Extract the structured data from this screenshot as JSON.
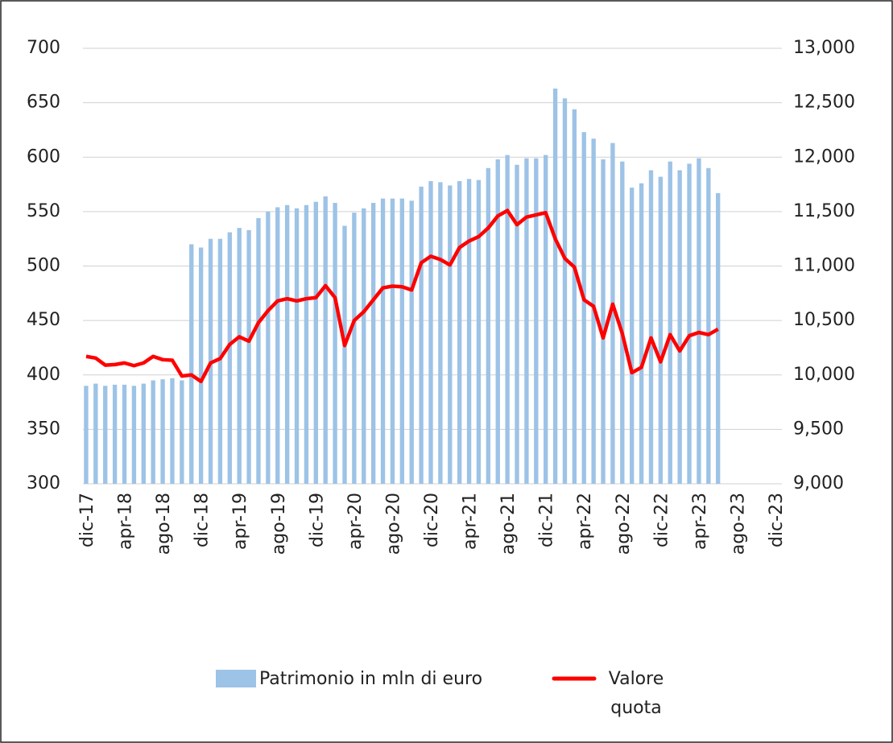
{
  "chart_data": {
    "type": "bar-line",
    "categories": [
      "dic-17",
      null,
      null,
      null,
      "apr-18",
      null,
      null,
      null,
      "ago-18",
      null,
      null,
      null,
      "dic-18",
      null,
      null,
      null,
      "apr-19",
      null,
      null,
      null,
      "ago-19",
      null,
      null,
      null,
      "dic-19",
      null,
      null,
      null,
      "apr-20",
      null,
      null,
      null,
      "ago-20",
      null,
      null,
      null,
      "dic-20",
      null,
      null,
      null,
      "apr-21",
      null,
      null,
      null,
      "ago-21",
      null,
      null,
      null,
      "dic-21",
      null,
      null,
      null,
      "apr-22",
      null,
      null,
      null,
      "ago-22",
      null,
      null,
      null,
      "dic-22",
      null,
      null,
      null,
      "apr-23",
      null,
      null,
      null,
      "ago-23",
      null,
      null,
      null,
      "dic-23"
    ],
    "series": [
      {
        "name": "Patrimonio in mln di euro",
        "type": "bar",
        "color": "#9dc3e6",
        "values": [
          390,
          392,
          390,
          391,
          391,
          390,
          392,
          395,
          396,
          397,
          395,
          520,
          517,
          525,
          525,
          531,
          535,
          533,
          544,
          550,
          554,
          556,
          553,
          556,
          559,
          564,
          558,
          537,
          549,
          553,
          558,
          562,
          562,
          562,
          560,
          573,
          578,
          577,
          574,
          578,
          580,
          579,
          590,
          598,
          602,
          593,
          599,
          599,
          602,
          663,
          654,
          644,
          623,
          617,
          598,
          613,
          596,
          572,
          576,
          588,
          582,
          596,
          588,
          594,
          599,
          590,
          567,
          null,
          null,
          null,
          null,
          null,
          null
        ]
      },
      {
        "name": "Valore quota",
        "type": "line",
        "axis": "y2",
        "color": "#ff0000",
        "values": [
          10170,
          10155,
          10090,
          10095,
          10110,
          10085,
          10110,
          10170,
          10140,
          10135,
          9990,
          10000,
          9940,
          10110,
          10150,
          10280,
          10350,
          10310,
          10480,
          10590,
          10680,
          10700,
          10680,
          10700,
          10710,
          10820,
          10710,
          10270,
          10500,
          10580,
          10690,
          10800,
          10815,
          10810,
          10780,
          11030,
          11090,
          11060,
          11010,
          11170,
          11230,
          11270,
          11350,
          11460,
          11510,
          11380,
          11450,
          11470,
          11490,
          11250,
          11070,
          10990,
          10690,
          10630,
          10340,
          10650,
          10380,
          10020,
          10070,
          10340,
          10120,
          10370,
          10220,
          10360,
          10390,
          10370,
          10420,
          null,
          null,
          null,
          null,
          null,
          null
        ]
      }
    ],
    "ylim": [
      300,
      700
    ],
    "yticks": [
      300,
      350,
      400,
      450,
      500,
      550,
      600,
      650,
      700
    ],
    "y2lim": [
      9000,
      13000
    ],
    "y2ticks": [
      {
        "value": 9000,
        "label": "9,000"
      },
      {
        "value": 9500,
        "label": "9,500"
      },
      {
        "value": 10000,
        "label": "10,000"
      },
      {
        "value": 10500,
        "label": "10,500"
      },
      {
        "value": 11000,
        "label": "11,000"
      },
      {
        "value": 11500,
        "label": "11,500"
      },
      {
        "value": 12000,
        "label": "12,000"
      },
      {
        "value": 12500,
        "label": "12,500"
      },
      {
        "value": 13000,
        "label": "13,000"
      }
    ],
    "grid": true,
    "legend": "bottom"
  }
}
